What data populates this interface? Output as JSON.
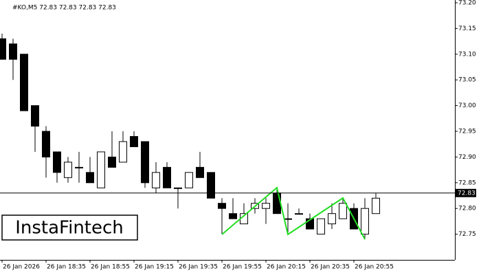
{
  "chart_data": {
    "type": "candlestick",
    "title": "#KO,M5  72.83 72.83 72.83 72.83",
    "watermark": "InstaFintech",
    "categories": [
      "26 Jan 2026",
      null,
      null,
      null,
      "26 Jan 18:35",
      null,
      null,
      null,
      "26 Jan 18:55",
      null,
      null,
      null,
      "26 Jan 19:15",
      null,
      null,
      null,
      "26 Jan 19:35",
      null,
      null,
      null,
      "26 Jan 19:55",
      null,
      null,
      null,
      "26 Jan 20:15",
      null,
      null,
      null,
      "26 Jan 20:35",
      null,
      null,
      null,
      "26 Jan 20:55",
      null,
      null
    ],
    "open": [
      73.13,
      73.12,
      73.1,
      73.0,
      72.95,
      72.91,
      72.86,
      72.88,
      72.87,
      72.84,
      72.9,
      72.89,
      72.94,
      72.93,
      72.84,
      72.88,
      72.84,
      72.84,
      72.88,
      72.87,
      72.81,
      72.79,
      72.77,
      72.8,
      72.8,
      72.83,
      72.78,
      72.79,
      72.78,
      72.75,
      72.77,
      72.78,
      72.8,
      72.75,
      72.79
    ],
    "high": [
      73.14,
      73.13,
      73.1,
      73.0,
      72.96,
      72.91,
      72.9,
      72.91,
      72.9,
      72.91,
      72.95,
      72.95,
      72.95,
      72.93,
      72.89,
      72.89,
      72.84,
      72.87,
      72.91,
      72.87,
      72.82,
      72.82,
      72.81,
      72.82,
      72.82,
      72.84,
      72.81,
      72.8,
      72.79,
      72.78,
      72.81,
      72.82,
      72.81,
      72.82,
      72.83
    ],
    "low": [
      73.09,
      73.05,
      72.99,
      72.91,
      72.86,
      72.85,
      72.85,
      72.85,
      72.85,
      72.84,
      72.88,
      72.89,
      72.92,
      72.84,
      72.83,
      72.84,
      72.8,
      72.84,
      72.86,
      72.82,
      72.75,
      72.78,
      72.77,
      72.79,
      72.77,
      72.79,
      72.75,
      72.79,
      72.76,
      72.75,
      72.76,
      72.78,
      72.76,
      72.74,
      72.79
    ],
    "close": [
      73.09,
      73.09,
      72.99,
      72.96,
      72.9,
      72.87,
      72.89,
      72.88,
      72.85,
      72.91,
      72.88,
      72.93,
      72.92,
      72.85,
      72.87,
      72.84,
      72.84,
      72.87,
      72.86,
      72.82,
      72.8,
      72.78,
      72.79,
      72.81,
      72.81,
      72.79,
      72.78,
      72.79,
      72.76,
      72.78,
      72.79,
      72.81,
      72.76,
      72.8,
      72.82
    ],
    "up_color": "#ffffff",
    "down_color": "#000000",
    "price_line": {
      "value": 72.83,
      "label": "72.83"
    },
    "ylim": [
      72.7,
      73.2
    ],
    "yticks": [
      {
        "value": 72.75,
        "label": "72.75"
      },
      {
        "value": 72.8,
        "label": "72.80"
      },
      {
        "value": 72.85,
        "label": "72.85"
      },
      {
        "value": 72.9,
        "label": "72.90"
      },
      {
        "value": 72.95,
        "label": "72.95"
      },
      {
        "value": 73.0,
        "label": "73.00"
      },
      {
        "value": 73.05,
        "label": "73.05"
      },
      {
        "value": 73.1,
        "label": "73.10"
      },
      {
        "value": 73.15,
        "label": "73.15"
      },
      {
        "value": 73.2,
        "label": "73.20"
      }
    ]
  }
}
